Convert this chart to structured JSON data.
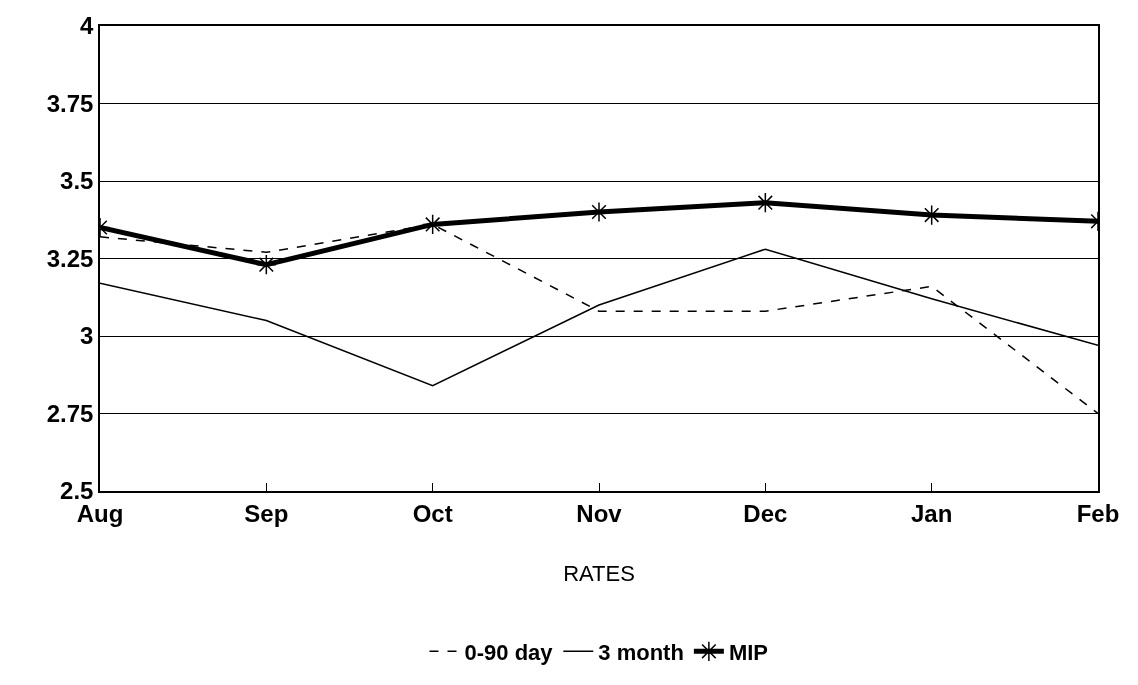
{
  "chart_data": {
    "type": "line",
    "xlabel": "RATES",
    "categories": [
      "Aug",
      "Sep",
      "Oct",
      "Nov",
      "Dec",
      "Jan",
      "Feb"
    ],
    "series": [
      {
        "name": "0-90 day",
        "color": "#000000",
        "line_style": "dashed",
        "marker": "none",
        "values": [
          3.32,
          3.27,
          3.36,
          3.08,
          3.08,
          3.16,
          2.75
        ]
      },
      {
        "name": "3 month",
        "color": "#000000",
        "line_style": "solid",
        "marker": "none",
        "values": [
          3.17,
          3.05,
          2.84,
          3.1,
          3.28,
          3.12,
          2.97
        ]
      },
      {
        "name": "MIP",
        "color": "#000000",
        "line_style": "solid",
        "marker": "cross",
        "values": [
          3.35,
          3.23,
          3.36,
          3.4,
          3.43,
          3.39,
          3.37
        ]
      }
    ],
    "ylim": [
      2.5,
      4
    ],
    "yticks": [
      2.5,
      2.75,
      3,
      3.25,
      3.5,
      3.75,
      4
    ],
    "grid": "y",
    "legend": "bottom"
  }
}
